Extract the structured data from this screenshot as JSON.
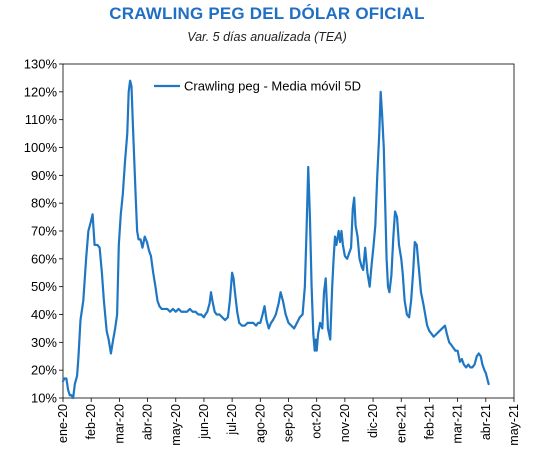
{
  "colors": {
    "title": "#1f6fc5",
    "series": "#1f77c4",
    "axis": "#000000"
  },
  "chart_data": {
    "type": "line",
    "title": "CRAWLING PEG DEL DÓLAR OFICIAL",
    "subtitle": "Var. 5 días anualizada (TEA)",
    "xlabel": "",
    "ylabel": "",
    "ylim": [
      0.1,
      1.3
    ],
    "yticks": [
      "10%",
      "20%",
      "30%",
      "40%",
      "50%",
      "60%",
      "70%",
      "80%",
      "90%",
      "100%",
      "110%",
      "120%",
      "130%"
    ],
    "xticks": [
      "ene-20",
      "feb-20",
      "mar-20",
      "abr-20",
      "may-20",
      "jun-20",
      "jul-20",
      "ago-20",
      "sep-20",
      "oct-20",
      "nov-20",
      "dic-20",
      "ene-21",
      "feb-21",
      "mar-21",
      "abr-21",
      "may-21"
    ],
    "xlim": [
      0,
      16
    ],
    "grid": false,
    "legend_position": "top-left",
    "series": [
      {
        "name": "Crawling peg - Media móvil 5D",
        "points": [
          [
            0.0,
            0.16
          ],
          [
            0.05,
            0.17
          ],
          [
            0.12,
            0.17
          ],
          [
            0.18,
            0.13
          ],
          [
            0.24,
            0.11
          ],
          [
            0.3,
            0.11
          ],
          [
            0.36,
            0.1
          ],
          [
            0.42,
            0.15
          ],
          [
            0.5,
            0.18
          ],
          [
            0.55,
            0.25
          ],
          [
            0.62,
            0.38
          ],
          [
            0.72,
            0.45
          ],
          [
            0.82,
            0.6
          ],
          [
            0.9,
            0.7
          ],
          [
            0.98,
            0.73
          ],
          [
            1.05,
            0.76
          ],
          [
            1.12,
            0.65
          ],
          [
            1.22,
            0.65
          ],
          [
            1.3,
            0.64
          ],
          [
            1.38,
            0.55
          ],
          [
            1.45,
            0.45
          ],
          [
            1.55,
            0.34
          ],
          [
            1.62,
            0.31
          ],
          [
            1.7,
            0.26
          ],
          [
            1.78,
            0.31
          ],
          [
            1.85,
            0.35
          ],
          [
            1.92,
            0.4
          ],
          [
            1.98,
            0.65
          ],
          [
            2.05,
            0.76
          ],
          [
            2.12,
            0.83
          ],
          [
            2.2,
            0.95
          ],
          [
            2.28,
            1.05
          ],
          [
            2.33,
            1.2
          ],
          [
            2.38,
            1.24
          ],
          [
            2.43,
            1.22
          ],
          [
            2.48,
            1.08
          ],
          [
            2.53,
            0.95
          ],
          [
            2.58,
            0.82
          ],
          [
            2.63,
            0.7
          ],
          [
            2.68,
            0.67
          ],
          [
            2.75,
            0.67
          ],
          [
            2.82,
            0.64
          ],
          [
            2.9,
            0.68
          ],
          [
            2.98,
            0.66
          ],
          [
            3.05,
            0.63
          ],
          [
            3.12,
            0.61
          ],
          [
            3.2,
            0.55
          ],
          [
            3.28,
            0.5
          ],
          [
            3.35,
            0.45
          ],
          [
            3.42,
            0.43
          ],
          [
            3.5,
            0.42
          ],
          [
            3.6,
            0.42
          ],
          [
            3.7,
            0.42
          ],
          [
            3.8,
            0.41
          ],
          [
            3.9,
            0.42
          ],
          [
            4.0,
            0.41
          ],
          [
            4.1,
            0.42
          ],
          [
            4.2,
            0.41
          ],
          [
            4.3,
            0.41
          ],
          [
            4.4,
            0.41
          ],
          [
            4.5,
            0.42
          ],
          [
            4.6,
            0.41
          ],
          [
            4.7,
            0.41
          ],
          [
            4.8,
            0.4
          ],
          [
            4.9,
            0.4
          ],
          [
            5.0,
            0.39
          ],
          [
            5.05,
            0.4
          ],
          [
            5.12,
            0.41
          ],
          [
            5.2,
            0.44
          ],
          [
            5.25,
            0.48
          ],
          [
            5.3,
            0.45
          ],
          [
            5.38,
            0.41
          ],
          [
            5.45,
            0.4
          ],
          [
            5.55,
            0.4
          ],
          [
            5.65,
            0.39
          ],
          [
            5.75,
            0.38
          ],
          [
            5.85,
            0.39
          ],
          [
            5.92,
            0.45
          ],
          [
            6.0,
            0.55
          ],
          [
            6.05,
            0.53
          ],
          [
            6.1,
            0.48
          ],
          [
            6.18,
            0.41
          ],
          [
            6.25,
            0.37
          ],
          [
            6.35,
            0.36
          ],
          [
            6.45,
            0.36
          ],
          [
            6.55,
            0.37
          ],
          [
            6.65,
            0.37
          ],
          [
            6.75,
            0.37
          ],
          [
            6.85,
            0.36
          ],
          [
            6.92,
            0.37
          ],
          [
            7.0,
            0.37
          ],
          [
            7.08,
            0.4
          ],
          [
            7.15,
            0.43
          ],
          [
            7.22,
            0.38
          ],
          [
            7.3,
            0.35
          ],
          [
            7.38,
            0.37
          ],
          [
            7.45,
            0.38
          ],
          [
            7.55,
            0.4
          ],
          [
            7.65,
            0.44
          ],
          [
            7.72,
            0.48
          ],
          [
            7.8,
            0.45
          ],
          [
            7.9,
            0.4
          ],
          [
            8.0,
            0.37
          ],
          [
            8.1,
            0.36
          ],
          [
            8.2,
            0.35
          ],
          [
            8.3,
            0.37
          ],
          [
            8.4,
            0.39
          ],
          [
            8.5,
            0.4
          ],
          [
            8.58,
            0.5
          ],
          [
            8.64,
            0.7
          ],
          [
            8.7,
            0.93
          ],
          [
            8.76,
            0.75
          ],
          [
            8.82,
            0.5
          ],
          [
            8.88,
            0.33
          ],
          [
            8.93,
            0.27
          ],
          [
            8.97,
            0.31
          ],
          [
            9.0,
            0.27
          ],
          [
            9.05,
            0.33
          ],
          [
            9.12,
            0.37
          ],
          [
            9.2,
            0.35
          ],
          [
            9.26,
            0.48
          ],
          [
            9.32,
            0.53
          ],
          [
            9.4,
            0.35
          ],
          [
            9.48,
            0.31
          ],
          [
            9.55,
            0.5
          ],
          [
            9.6,
            0.6
          ],
          [
            9.65,
            0.68
          ],
          [
            9.7,
            0.65
          ],
          [
            9.78,
            0.7
          ],
          [
            9.83,
            0.66
          ],
          [
            9.88,
            0.7
          ],
          [
            9.93,
            0.65
          ],
          [
            10.0,
            0.61
          ],
          [
            10.08,
            0.6
          ],
          [
            10.15,
            0.62
          ],
          [
            10.22,
            0.64
          ],
          [
            10.28,
            0.78
          ],
          [
            10.33,
            0.82
          ],
          [
            10.38,
            0.72
          ],
          [
            10.45,
            0.68
          ],
          [
            10.52,
            0.6
          ],
          [
            10.6,
            0.57
          ],
          [
            10.65,
            0.56
          ],
          [
            10.72,
            0.64
          ],
          [
            10.8,
            0.55
          ],
          [
            10.88,
            0.5
          ],
          [
            10.95,
            0.58
          ],
          [
            11.02,
            0.65
          ],
          [
            11.08,
            0.72
          ],
          [
            11.15,
            0.9
          ],
          [
            11.22,
            1.05
          ],
          [
            11.27,
            1.2
          ],
          [
            11.32,
            1.12
          ],
          [
            11.38,
            1.0
          ],
          [
            11.43,
            0.8
          ],
          [
            11.48,
            0.6
          ],
          [
            11.53,
            0.5
          ],
          [
            11.58,
            0.48
          ],
          [
            11.65,
            0.54
          ],
          [
            11.72,
            0.68
          ],
          [
            11.78,
            0.77
          ],
          [
            11.85,
            0.75
          ],
          [
            11.92,
            0.65
          ],
          [
            12.0,
            0.6
          ],
          [
            12.05,
            0.55
          ],
          [
            12.12,
            0.45
          ],
          [
            12.2,
            0.4
          ],
          [
            12.28,
            0.39
          ],
          [
            12.35,
            0.45
          ],
          [
            12.42,
            0.55
          ],
          [
            12.48,
            0.66
          ],
          [
            12.55,
            0.65
          ],
          [
            12.62,
            0.57
          ],
          [
            12.7,
            0.48
          ],
          [
            12.78,
            0.44
          ],
          [
            12.85,
            0.4
          ],
          [
            12.92,
            0.36
          ],
          [
            13.0,
            0.34
          ],
          [
            13.08,
            0.33
          ],
          [
            13.15,
            0.32
          ],
          [
            13.25,
            0.33
          ],
          [
            13.35,
            0.34
          ],
          [
            13.45,
            0.35
          ],
          [
            13.55,
            0.36
          ],
          [
            13.62,
            0.33
          ],
          [
            13.7,
            0.3
          ],
          [
            13.78,
            0.29
          ],
          [
            13.85,
            0.28
          ],
          [
            13.92,
            0.27
          ],
          [
            14.0,
            0.27
          ],
          [
            14.08,
            0.23
          ],
          [
            14.15,
            0.24
          ],
          [
            14.22,
            0.22
          ],
          [
            14.3,
            0.21
          ],
          [
            14.38,
            0.22
          ],
          [
            14.45,
            0.21
          ],
          [
            14.52,
            0.21
          ],
          [
            14.6,
            0.22
          ],
          [
            14.68,
            0.25
          ],
          [
            14.75,
            0.26
          ],
          [
            14.82,
            0.25
          ],
          [
            14.88,
            0.22
          ],
          [
            14.95,
            0.2
          ],
          [
            15.0,
            0.19
          ],
          [
            15.05,
            0.17
          ],
          [
            15.1,
            0.15
          ]
        ]
      }
    ]
  }
}
